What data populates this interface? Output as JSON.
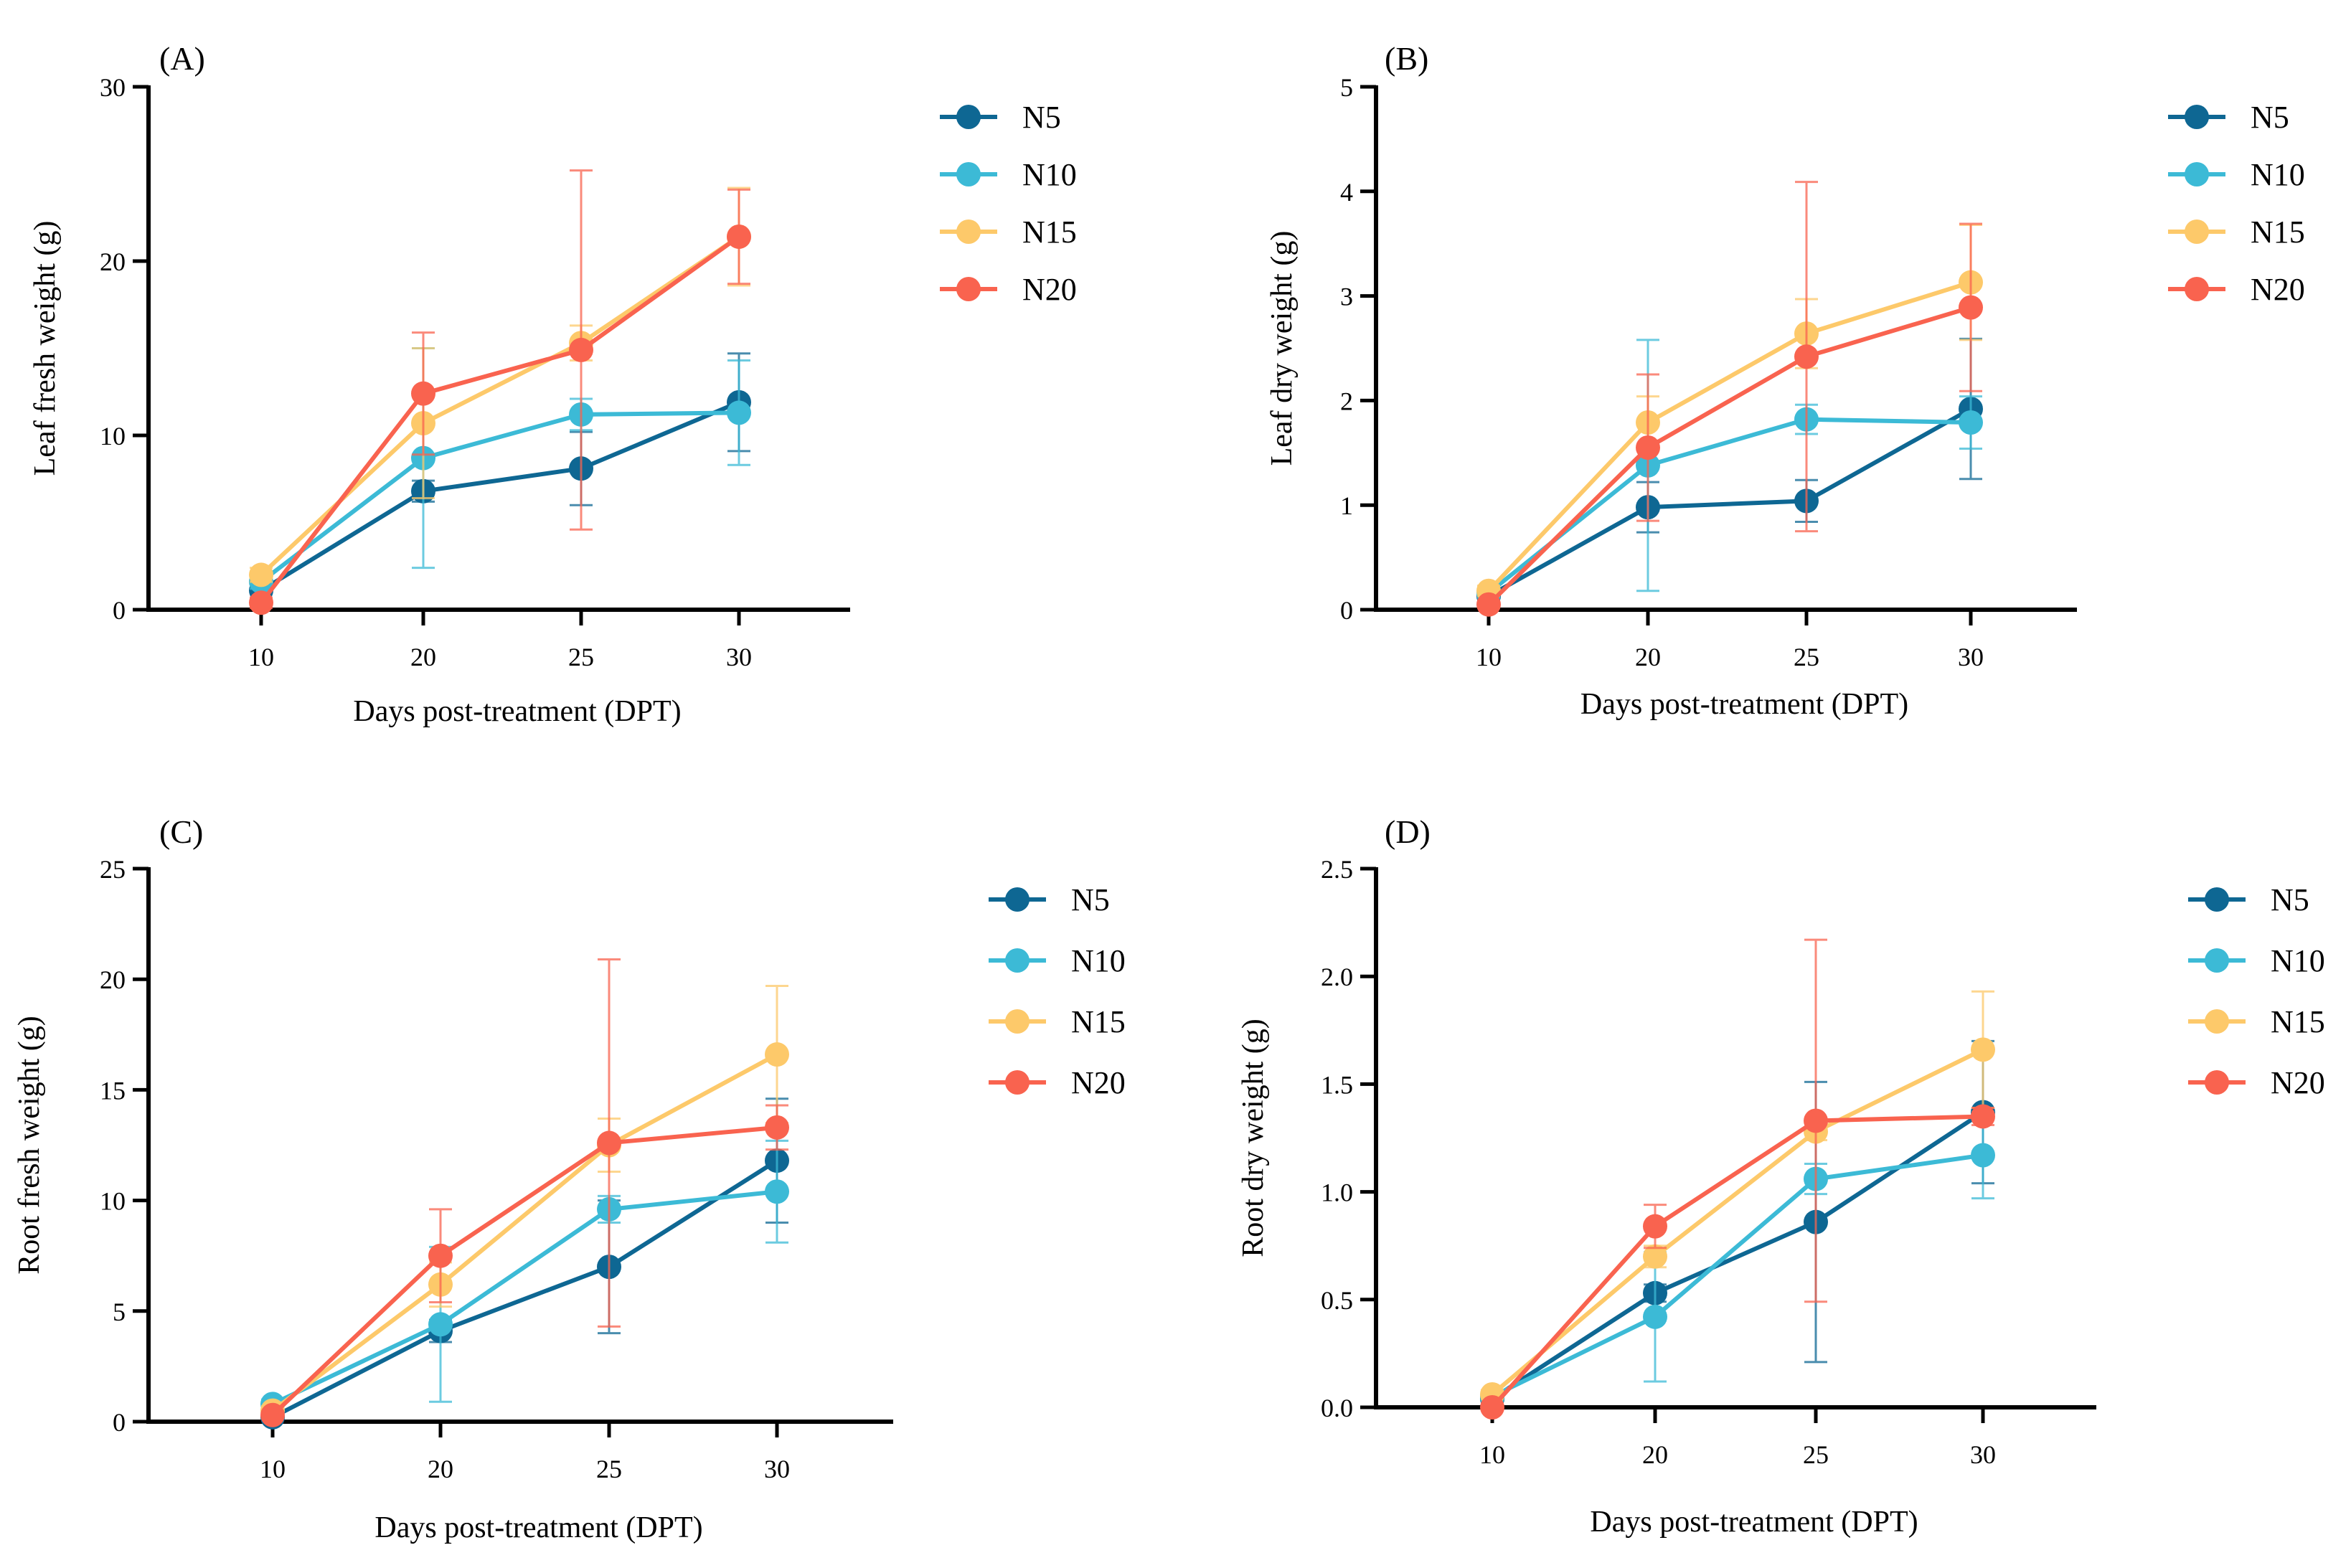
{
  "figure": {
    "panels": [
      "(A)",
      "(B)",
      "(C)",
      "(D)"
    ]
  },
  "chart_data": [
    {
      "id": "A",
      "panel_label": "(A)",
      "type": "line",
      "xlabel": "Days post-treatment (DPT)",
      "ylabel": "Leaf fresh weight (g)",
      "categories": [
        "10",
        "20",
        "25",
        "30"
      ],
      "ylim": [
        0,
        30
      ],
      "yticks": [
        "0",
        "10",
        "20",
        "30"
      ],
      "legend": "right",
      "series": [
        {
          "name": "N5",
          "color": "#0e6793",
          "values": [
            1.1,
            6.8,
            8.1,
            11.9
          ],
          "errors": [
            0.5,
            0.6,
            2.1,
            2.8
          ]
        },
        {
          "name": "N10",
          "color": "#3cbad6",
          "values": [
            1.6,
            8.7,
            11.2,
            11.3
          ],
          "errors": [
            0.4,
            6.3,
            0.9,
            3.0
          ]
        },
        {
          "name": "N15",
          "color": "#fdc96a",
          "values": [
            2.0,
            10.7,
            15.3,
            21.4
          ],
          "errors": [
            0.4,
            4.3,
            1.0,
            2.8
          ]
        },
        {
          "name": "N20",
          "color": "#f9634f",
          "values": [
            0.4,
            12.4,
            14.9,
            21.4
          ],
          "errors": [
            0.3,
            3.5,
            10.3,
            2.7
          ]
        }
      ]
    },
    {
      "id": "B",
      "panel_label": "(B)",
      "type": "line",
      "xlabel": "Days post-treatment (DPT)",
      "ylabel": "Leaf dry weight (g)",
      "categories": [
        "10",
        "20",
        "25",
        "30"
      ],
      "ylim": [
        0,
        5
      ],
      "yticks": [
        "0",
        "1",
        "2",
        "3",
        "4",
        "5"
      ],
      "legend": "right",
      "series": [
        {
          "name": "N5",
          "color": "#0e6793",
          "values": [
            0.13,
            0.98,
            1.04,
            1.92
          ],
          "errors": [
            0.05,
            0.24,
            0.2,
            0.67
          ]
        },
        {
          "name": "N10",
          "color": "#3cbad6",
          "values": [
            0.16,
            1.38,
            1.82,
            1.79
          ],
          "errors": [
            0.05,
            1.2,
            0.14,
            0.25
          ]
        },
        {
          "name": "N15",
          "color": "#fdc96a",
          "values": [
            0.18,
            1.79,
            2.64,
            3.13
          ],
          "errors": [
            0.05,
            0.25,
            0.33,
            0.55
          ]
        },
        {
          "name": "N20",
          "color": "#f9634f",
          "values": [
            0.05,
            1.55,
            2.42,
            2.89
          ],
          "errors": [
            0.03,
            0.7,
            1.67,
            0.8
          ]
        }
      ]
    },
    {
      "id": "C",
      "panel_label": "(C)",
      "type": "line",
      "xlabel": "Days post-treatment (DPT)",
      "ylabel": "Root fresh weight (g)",
      "categories": [
        "10",
        "20",
        "25",
        "30"
      ],
      "ylim": [
        0,
        25
      ],
      "yticks": [
        "0",
        "5",
        "10",
        "15",
        "20",
        "25"
      ],
      "legend": "right",
      "series": [
        {
          "name": "N5",
          "color": "#0e6793",
          "values": [
            0.2,
            4.1,
            7.0,
            11.8
          ],
          "errors": [
            0.1,
            0.5,
            3.0,
            2.8
          ]
        },
        {
          "name": "N10",
          "color": "#3cbad6",
          "values": [
            0.8,
            4.4,
            9.6,
            10.4
          ],
          "errors": [
            0.2,
            3.5,
            0.6,
            2.3
          ]
        },
        {
          "name": "N15",
          "color": "#fdc96a",
          "values": [
            0.5,
            6.2,
            12.5,
            16.6
          ],
          "errors": [
            0.2,
            1.0,
            1.2,
            3.1
          ]
        },
        {
          "name": "N20",
          "color": "#f9634f",
          "values": [
            0.3,
            7.5,
            12.6,
            13.3
          ],
          "errors": [
            0.1,
            2.1,
            8.3,
            1.0
          ]
        }
      ]
    },
    {
      "id": "D",
      "panel_label": "(D)",
      "type": "line",
      "xlabel": "Days post-treatment (DPT)",
      "ylabel": "Root dry weight (g)",
      "categories": [
        "10",
        "20",
        "25",
        "30"
      ],
      "ylim": [
        0,
        2.5
      ],
      "yticks": [
        "0.0",
        "0.5",
        "1.0",
        "1.5",
        "2.0",
        "2.5"
      ],
      "legend": "right",
      "series": [
        {
          "name": "N5",
          "color": "#0e6793",
          "values": [
            0.04,
            0.53,
            0.86,
            1.37
          ],
          "errors": [
            0.01,
            0.04,
            0.65,
            0.33
          ]
        },
        {
          "name": "N10",
          "color": "#3cbad6",
          "values": [
            0.05,
            0.42,
            1.06,
            1.17
          ],
          "errors": [
            0.02,
            0.3,
            0.07,
            0.2
          ]
        },
        {
          "name": "N15",
          "color": "#fdc96a",
          "values": [
            0.06,
            0.7,
            1.28,
            1.66
          ],
          "errors": [
            0.02,
            0.05,
            0.04,
            0.27
          ]
        },
        {
          "name": "N20",
          "color": "#f9634f",
          "values": [
            0.0,
            0.84,
            1.33,
            1.35
          ],
          "errors": [
            0.01,
            0.1,
            0.84,
            0.04
          ]
        }
      ]
    }
  ]
}
